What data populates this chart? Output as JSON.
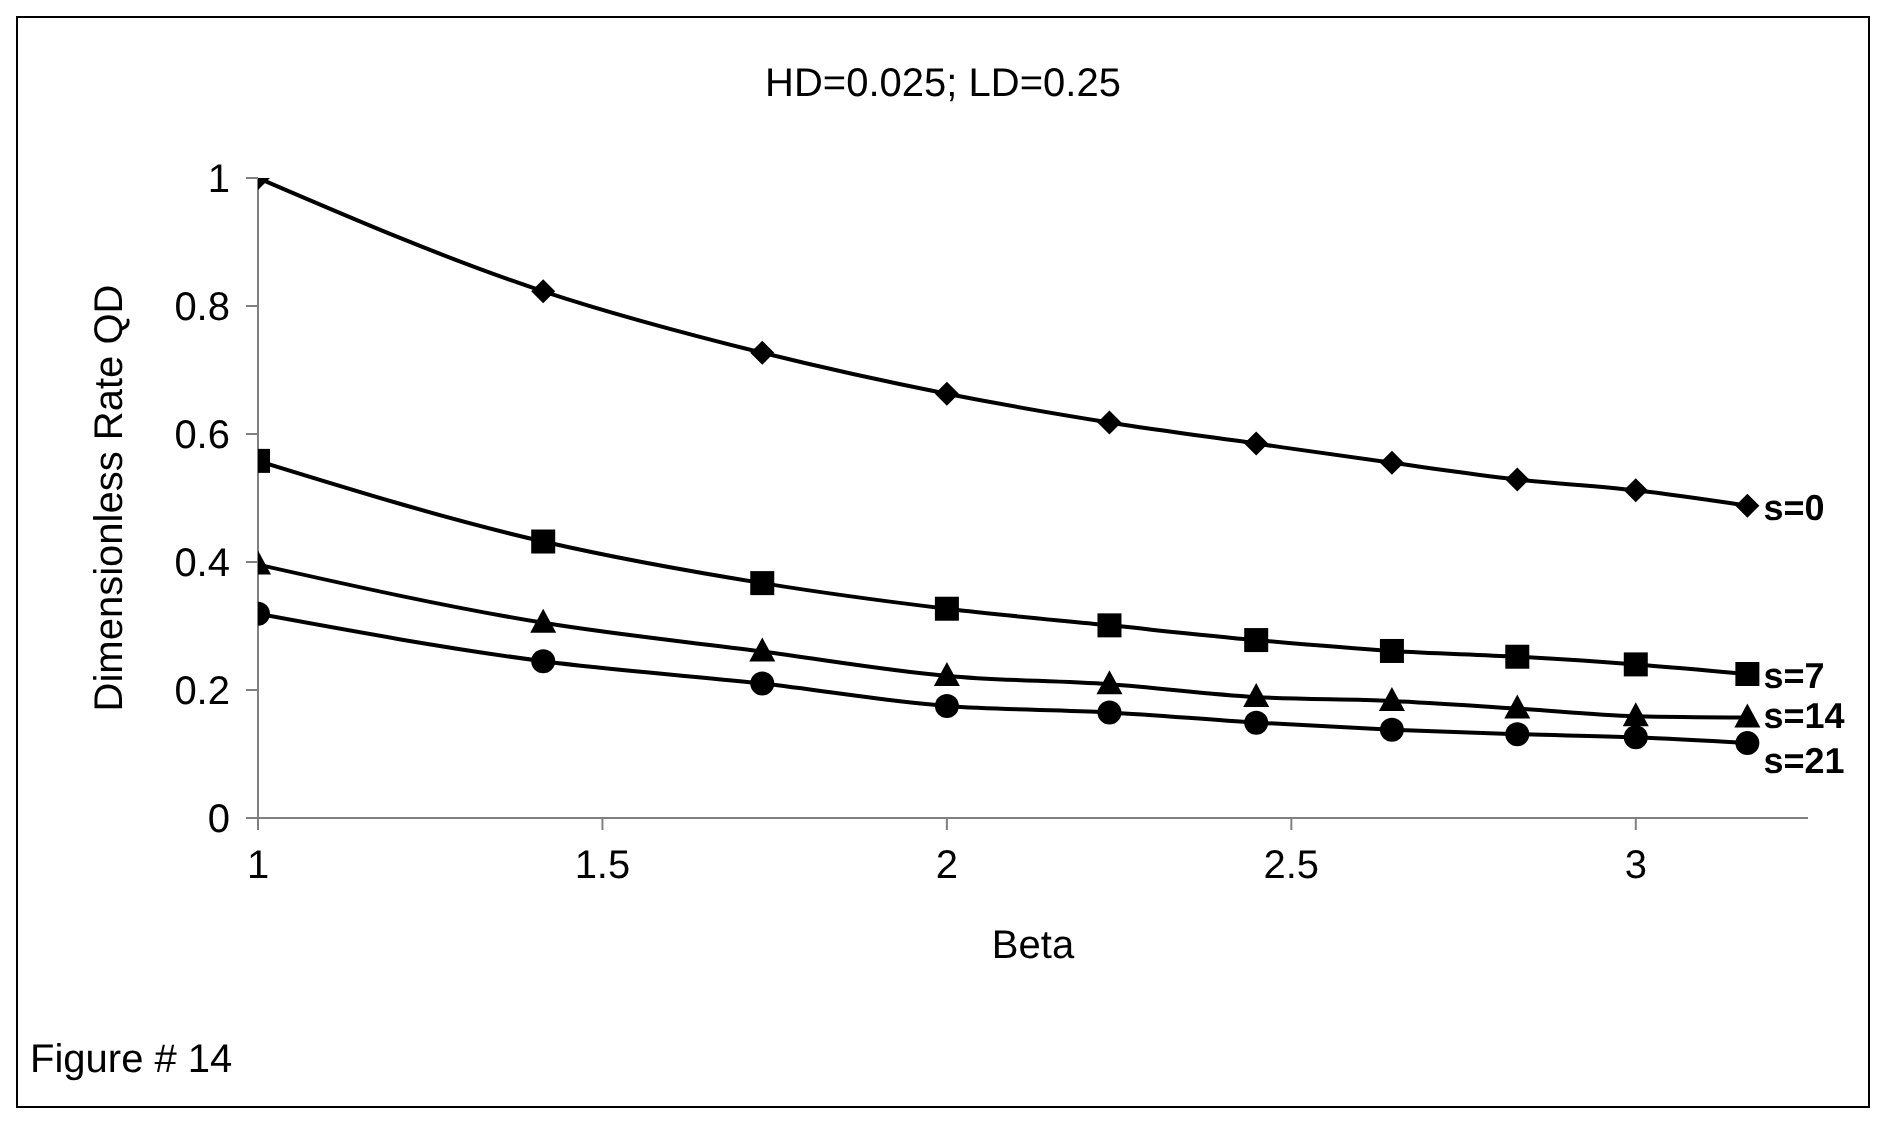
{
  "chart_data": {
    "type": "line",
    "title": "HD=0.025; LD=0.25",
    "xlabel": "Beta",
    "ylabel": "Dimensionless Rate QD",
    "x": [
      1,
      1.414,
      1.732,
      2,
      2.236,
      2.449,
      2.646,
      2.828,
      3,
      3.162
    ],
    "series": [
      {
        "name": "s=0",
        "color": "#000000",
        "marker": "diamond",
        "values": [
          1.0,
          0.823,
          0.727,
          0.663,
          0.618,
          0.585,
          0.555,
          0.529,
          0.512,
          0.488
        ]
      },
      {
        "name": "s=7",
        "color": "#000000",
        "marker": "square",
        "values": [
          0.558,
          0.432,
          0.367,
          0.327,
          0.301,
          0.278,
          0.261,
          0.252,
          0.24,
          0.225
        ]
      },
      {
        "name": "s=14",
        "color": "#000000",
        "marker": "triangle",
        "values": [
          0.396,
          0.305,
          0.26,
          0.222,
          0.209,
          0.189,
          0.183,
          0.171,
          0.159,
          0.157
        ]
      },
      {
        "name": "s=21",
        "color": "#000000",
        "marker": "circle",
        "values": [
          0.319,
          0.245,
          0.21,
          0.175,
          0.165,
          0.149,
          0.138,
          0.131,
          0.126,
          0.117
        ]
      }
    ],
    "xlim": [
      1,
      3.25
    ],
    "xticks": [
      1,
      1.5,
      2,
      2.5,
      3
    ],
    "ylim": [
      0,
      1
    ],
    "yticks": [
      0,
      0.2,
      0.4,
      0.6,
      0.8,
      1
    ],
    "grid": false,
    "legend": false,
    "line_style": "solid",
    "annotations": [
      "Figure # 14"
    ]
  }
}
